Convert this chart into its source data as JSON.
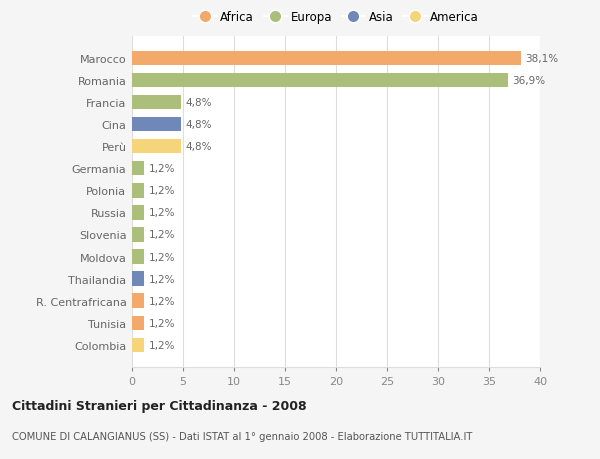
{
  "countries": [
    "Marocco",
    "Romania",
    "Francia",
    "Cina",
    "Perù",
    "Germania",
    "Polonia",
    "Russia",
    "Slovenia",
    "Moldova",
    "Thailandia",
    "R. Centrafricana",
    "Tunisia",
    "Colombia"
  ],
  "values": [
    38.1,
    36.9,
    4.8,
    4.8,
    4.8,
    1.2,
    1.2,
    1.2,
    1.2,
    1.2,
    1.2,
    1.2,
    1.2,
    1.2
  ],
  "labels": [
    "38,1%",
    "36,9%",
    "4,8%",
    "4,8%",
    "4,8%",
    "1,2%",
    "1,2%",
    "1,2%",
    "1,2%",
    "1,2%",
    "1,2%",
    "1,2%",
    "1,2%",
    "1,2%"
  ],
  "colors": [
    "#F2A96A",
    "#ABBF7A",
    "#ABBF7A",
    "#7088B8",
    "#F5D47A",
    "#ABBF7A",
    "#ABBF7A",
    "#ABBF7A",
    "#ABBF7A",
    "#ABBF7A",
    "#7088B8",
    "#F2A96A",
    "#F2A96A",
    "#F5D47A"
  ],
  "legend_labels": [
    "Africa",
    "Europa",
    "Asia",
    "America"
  ],
  "legend_colors": [
    "#F2A96A",
    "#ABBF7A",
    "#7088B8",
    "#F5D47A"
  ],
  "title": "Cittadini Stranieri per Cittadinanza - 2008",
  "subtitle": "COMUNE DI CALANGIANUS (SS) - Dati ISTAT al 1° gennaio 2008 - Elaborazione TUTTITALIA.IT",
  "xlim": [
    0,
    40
  ],
  "xticks": [
    0,
    5,
    10,
    15,
    20,
    25,
    30,
    35,
    40
  ],
  "background_color": "#f5f5f5",
  "plot_bg_color": "#ffffff",
  "grid_color": "#dddddd",
  "label_color": "#666666",
  "tick_color": "#888888"
}
